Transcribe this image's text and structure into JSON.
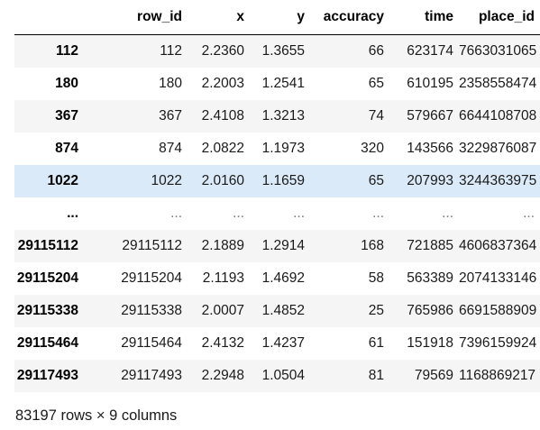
{
  "table": {
    "index_header": "",
    "columns": [
      "row_id",
      "x",
      "y",
      "accuracy",
      "time",
      "place_id"
    ],
    "highlight_color": "#dbeaf8",
    "stripe_color": "#f5f5f5",
    "rows": [
      {
        "index": "112",
        "cells": [
          "112",
          "2.2360",
          "1.3655",
          "66",
          "623174",
          "7663031065"
        ]
      },
      {
        "index": "180",
        "cells": [
          "180",
          "2.2003",
          "1.2541",
          "65",
          "610195",
          "2358558474"
        ]
      },
      {
        "index": "367",
        "cells": [
          "367",
          "2.4108",
          "1.3213",
          "74",
          "579667",
          "6644108708"
        ]
      },
      {
        "index": "874",
        "cells": [
          "874",
          "2.0822",
          "1.1973",
          "320",
          "143566",
          "3229876087"
        ]
      },
      {
        "index": "1022",
        "cells": [
          "1022",
          "2.0160",
          "1.1659",
          "65",
          "207993",
          "3244363975"
        ],
        "highlighted": true
      },
      {
        "index": "...",
        "cells": [
          "...",
          "...",
          "...",
          "...",
          "...",
          "..."
        ],
        "ellipsis": true
      },
      {
        "index": "29115112",
        "cells": [
          "29115112",
          "2.1889",
          "1.2914",
          "168",
          "721885",
          "4606837364"
        ]
      },
      {
        "index": "29115204",
        "cells": [
          "29115204",
          "2.1193",
          "1.4692",
          "58",
          "563389",
          "2074133146"
        ]
      },
      {
        "index": "29115338",
        "cells": [
          "29115338",
          "2.0007",
          "1.4852",
          "25",
          "765986",
          "6691588909"
        ]
      },
      {
        "index": "29115464",
        "cells": [
          "29115464",
          "2.4132",
          "1.4237",
          "61",
          "151918",
          "7396159924"
        ]
      },
      {
        "index": "29117493",
        "cells": [
          "29117493",
          "2.2948",
          "1.0504",
          "81",
          "79569",
          "1168869217"
        ]
      }
    ]
  },
  "shape_summary": "83197 rows × 9 columns"
}
